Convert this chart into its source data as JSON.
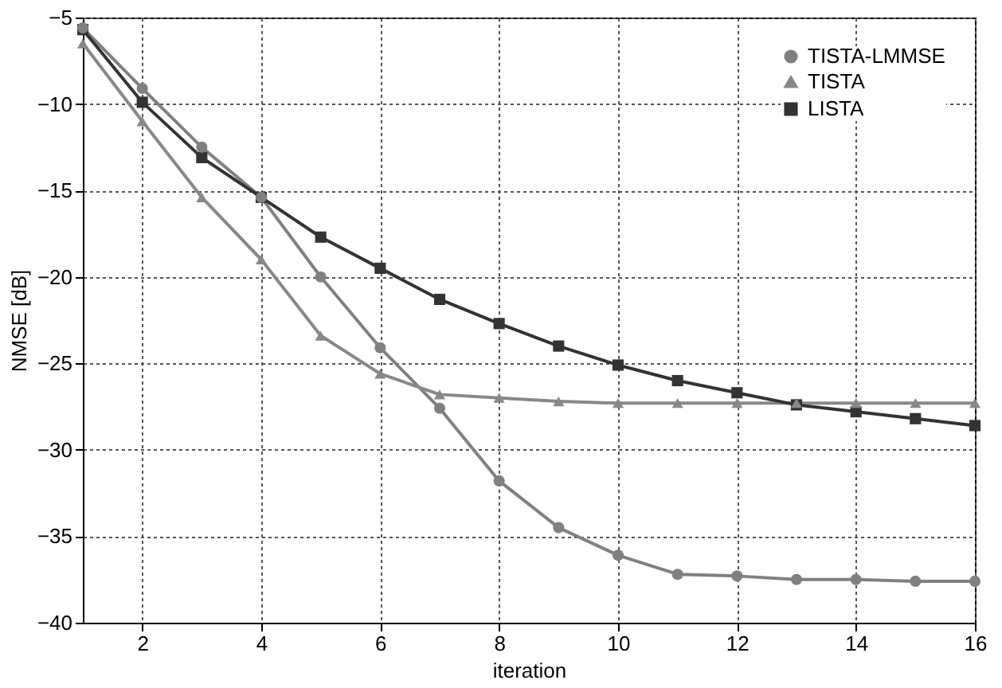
{
  "chart_data": {
    "type": "line",
    "xlabel": "iteration",
    "ylabel": "NMSE [dB]",
    "x": [
      1,
      2,
      3,
      4,
      5,
      6,
      7,
      8,
      9,
      10,
      11,
      12,
      13,
      14,
      15,
      16
    ],
    "series": [
      {
        "name": "TISTA-LMMSE",
        "color": "#808080",
        "marker": "circle",
        "values": [
          -5.6,
          -9.1,
          -12.5,
          -15.4,
          -20.0,
          -24.1,
          -27.6,
          -31.8,
          -34.5,
          -36.1,
          -37.2,
          -37.3,
          -37.5,
          -37.5,
          -37.6,
          -37.6
        ]
      },
      {
        "name": "TISTA",
        "color": "#888888",
        "marker": "triangle",
        "values": [
          -6.5,
          -11.0,
          -15.4,
          -19.0,
          -23.4,
          -25.6,
          -26.8,
          -27.0,
          -27.2,
          -27.3,
          -27.3,
          -27.3,
          -27.3,
          -27.3,
          -27.3,
          -27.3
        ]
      },
      {
        "name": "LISTA",
        "color": "#333333",
        "marker": "square",
        "values": [
          -5.7,
          -9.9,
          -13.1,
          -15.4,
          -17.7,
          -19.5,
          -21.3,
          -22.7,
          -24.0,
          -25.1,
          -26.0,
          -26.7,
          -27.4,
          -27.8,
          -28.2,
          -28.6
        ]
      }
    ],
    "xlim": [
      1,
      16
    ],
    "xticks": [
      2,
      4,
      6,
      8,
      10,
      12,
      14,
      16
    ],
    "ylim": [
      -40,
      -5
    ],
    "yticks": [
      -40,
      -35,
      -30,
      -25,
      -20,
      -15,
      -10,
      -5
    ],
    "grid": true,
    "legend": "top right",
    "line_style": "solid"
  }
}
